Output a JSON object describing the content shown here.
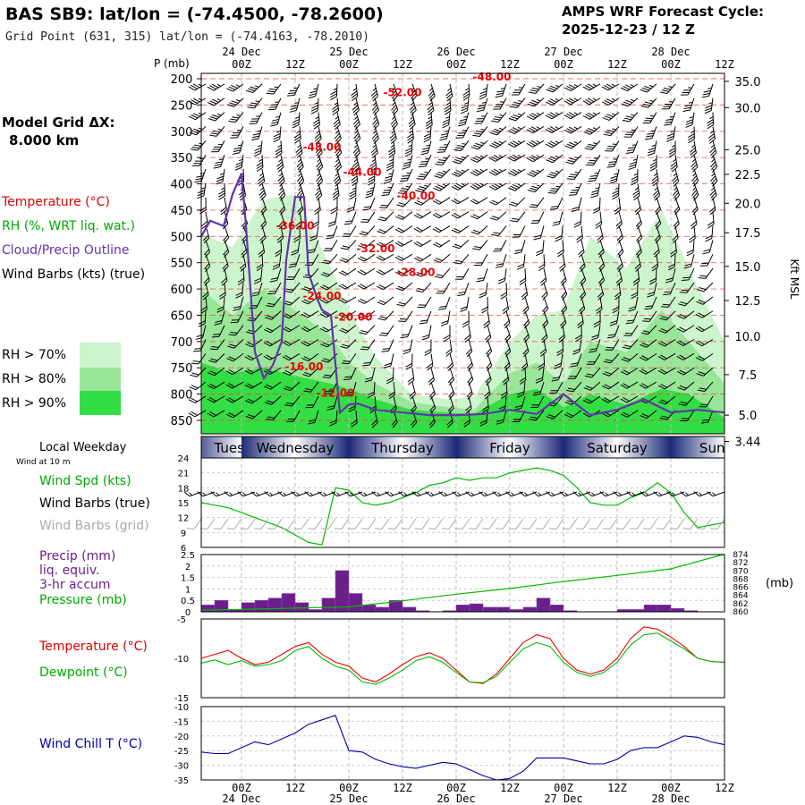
{
  "header": {
    "station_title": "BAS SB9:  lat/lon = (-74.4500, -78.2600)",
    "grid_point": "Grid Point (631, 315) lat/lon = (-74.4163, -78.2010)",
    "cycle_label": "AMPS WRF Forecast Cycle:",
    "cycle_value": "2025-12-23 / 12  Z"
  },
  "time_axis": {
    "hour_ticks": [
      "00Z",
      "12Z",
      "00Z",
      "12Z",
      "00Z",
      "12Z",
      "00Z",
      "12Z",
      "00Z",
      "12Z"
    ],
    "tick_times_h": [
      0,
      12,
      24,
      36,
      48,
      60,
      72,
      84,
      96,
      108
    ],
    "date_labels": [
      "24 Dec",
      "25 Dec",
      "26 Dec",
      "27 Dec",
      "28 Dec"
    ],
    "date_times_h": [
      0,
      24,
      48,
      72,
      96
    ],
    "range_h": [
      -9,
      108
    ]
  },
  "left_panel": {
    "model_grid_label": "Model Grid ΔX:",
    "model_grid_value": "8.000 km",
    "legend_temperature": "Temperature (°C)",
    "legend_rh": "RH (%, WRT liq. wat.)",
    "legend_cloud": "Cloud/Precip Outline",
    "legend_wind": "Wind Barbs (kts) (true)",
    "rh_levels": [
      {
        "label": "RH > 70%",
        "color": "#cdf5cd"
      },
      {
        "label": "RH > 80%",
        "color": "#99e699"
      },
      {
        "label": "RH > 90%",
        "color": "#33dd44"
      }
    ],
    "local_weekday_label": "Local Weekday",
    "wind_at_label": "Wind at 10 m",
    "wind_spd_label": "Wind Spd (kts)",
    "wind_barbs_true_label": "Wind Barbs (true)",
    "wind_barbs_grid_label": "Wind Barbs (grid)",
    "precip_label_1": "Precip (mm)",
    "precip_label_2": "liq. equiv.",
    "precip_label_3": "3-hr accum",
    "pressure_label": "Pressure (mb)",
    "pressure_unit": "(mb)",
    "temperature_label": "Temperature (°C)",
    "dewpoint_label": "Dewpoint (°C)",
    "windchill_label": "Wind Chill T (°C)"
  },
  "weekday_band": {
    "days": [
      {
        "label": "Tuesday",
        "start_h": -12
      },
      {
        "label": "Wednesday",
        "start_h": 0
      },
      {
        "label": "Thursday",
        "start_h": 24
      },
      {
        "label": "Friday",
        "start_h": 48
      },
      {
        "label": "Saturday",
        "start_h": 72
      },
      {
        "label": "Sunday",
        "start_h": 96
      }
    ],
    "dark_color": "#1c2a78",
    "light_color": "#ffffff"
  },
  "colors": {
    "temperature": "#ee0000",
    "dewpoint": "#00bb00",
    "cloud_outline": "#6633aa",
    "precip_bar": "#6a1f8a",
    "pressure_line": "#00bb00",
    "windchill": "#0000aa",
    "grid_barbs": "#aaaaaa",
    "barbs": "#000000"
  },
  "chart_data": [
    {
      "type": "heatmap",
      "yaxis_title": "P (mb)",
      "right_axis_title": "Kft MSL",
      "pressure_levels_mb": [
        200,
        250,
        300,
        350,
        400,
        450,
        500,
        550,
        600,
        650,
        700,
        750,
        800,
        850
      ],
      "height_ticks_kft": [
        {
          "kft": "35.0",
          "p": 205
        },
        {
          "kft": "30.0",
          "p": 255
        },
        {
          "kft": "25.0",
          "p": 335
        },
        {
          "kft": "22.5",
          "p": 382
        },
        {
          "kft": "20.0",
          "p": 437
        },
        {
          "kft": "17.5",
          "p": 493
        },
        {
          "kft": "15.0",
          "p": 557
        },
        {
          "kft": "12.5",
          "p": 622
        },
        {
          "kft": "10.0",
          "p": 690
        },
        {
          "kft": "7.5",
          "p": 763
        },
        {
          "kft": "5.0",
          "p": 840
        },
        {
          "kft": "3.44",
          "p": 890
        }
      ],
      "temperature_contour_labels": [
        {
          "text": "-48.00",
          "t_h": 56,
          "p": 203
        },
        {
          "text": "-52.00",
          "t_h": 36,
          "p": 233
        },
        {
          "text": "-48.00",
          "t_h": 18,
          "p": 337
        },
        {
          "text": "-44.00",
          "t_h": 27,
          "p": 385
        },
        {
          "text": "-40.00",
          "t_h": 39,
          "p": 430
        },
        {
          "text": "-36.00",
          "t_h": 12,
          "p": 487
        },
        {
          "text": "-32.00",
          "t_h": 30,
          "p": 530
        },
        {
          "text": "-28.00",
          "t_h": 39,
          "p": 575
        },
        {
          "text": "-24.00",
          "t_h": 18,
          "p": 620
        },
        {
          "text": "-20.00",
          "t_h": 25,
          "p": 660
        },
        {
          "text": "-16.00",
          "t_h": 14,
          "p": 755
        },
        {
          "text": "-12.00",
          "t_h": 21,
          "p": 805
        }
      ],
      "rh_regions": [
        {
          "level": ">70%",
          "color": "#cdf5cd",
          "t_h": [
            -9,
            -2,
            5,
            12,
            20,
            24,
            30,
            38,
            46,
            52,
            60,
            66,
            72,
            78,
            86,
            94,
            100,
            108
          ],
          "p_top": [
            495,
            520,
            430,
            420,
            560,
            640,
            730,
            800,
            810,
            805,
            700,
            650,
            640,
            500,
            560,
            450,
            560,
            700
          ]
        },
        {
          "level": ">80%",
          "color": "#99e699",
          "t_h": [
            -9,
            -2,
            5,
            12,
            20,
            24,
            30,
            38,
            46,
            52,
            60,
            66,
            72,
            78,
            86,
            94,
            100,
            108
          ],
          "p_top": [
            600,
            650,
            600,
            640,
            690,
            740,
            780,
            815,
            825,
            830,
            760,
            740,
            780,
            700,
            720,
            640,
            700,
            780
          ]
        },
        {
          "level": ">90%",
          "color": "#33dd44",
          "t_h": [
            -9,
            -2,
            5,
            12,
            20,
            24,
            30,
            38,
            46,
            52,
            60,
            66,
            72,
            78,
            86,
            94,
            100,
            108
          ],
          "p_top": [
            740,
            760,
            750,
            765,
            780,
            790,
            810,
            830,
            835,
            838,
            800,
            790,
            825,
            800,
            820,
            790,
            800,
            845
          ]
        }
      ],
      "cloud_outline": {
        "t_h": [
          -9,
          -7,
          -4,
          -2,
          0,
          1,
          3,
          5,
          7,
          9,
          10,
          12,
          14,
          15,
          17,
          18,
          20,
          22,
          24,
          26,
          30,
          36,
          42,
          48,
          54,
          60,
          66,
          72,
          78,
          84,
          90,
          96,
          102,
          108
        ],
        "p": [
          500,
          470,
          480,
          420,
          380,
          480,
          720,
          770,
          745,
          700,
          545,
          425,
          425,
          570,
          620,
          640,
          650,
          835,
          820,
          818,
          830,
          835,
          840,
          840,
          838,
          830,
          838,
          800,
          840,
          830,
          810,
          835,
          830,
          835
        ]
      }
    },
    {
      "type": "line",
      "ylabel": "Wind Spd (kts)",
      "yticks": [
        6,
        9,
        12,
        15,
        18,
        21,
        24
      ],
      "ylim": [
        6,
        24
      ],
      "x_h": [
        -9,
        -6,
        -3,
        0,
        3,
        6,
        9,
        12,
        15,
        18,
        21,
        24,
        27,
        30,
        33,
        36,
        39,
        42,
        45,
        48,
        51,
        54,
        57,
        60,
        63,
        66,
        69,
        72,
        75,
        78,
        81,
        84,
        87,
        90,
        93,
        96,
        99,
        102,
        105,
        108
      ],
      "values": [
        15,
        14.5,
        14,
        13,
        12,
        11,
        10,
        8.5,
        7,
        6.5,
        18,
        17.5,
        15,
        14.5,
        15,
        16,
        17,
        18.5,
        19,
        20,
        19.5,
        20,
        20,
        21,
        21.5,
        22,
        21.5,
        20.5,
        18,
        15,
        14.5,
        14.5,
        16,
        17,
        19,
        17,
        13,
        10,
        10.5,
        11
      ]
    },
    {
      "type": "bar",
      "ylabel": "Precip (mm)",
      "yticks": [
        0,
        0.5,
        1.0,
        1.5,
        2.0,
        2.5
      ],
      "ylim": [
        0,
        2.5
      ],
      "x_h": [
        -9,
        -6,
        -3,
        0,
        3,
        6,
        9,
        12,
        15,
        18,
        21,
        24,
        27,
        30,
        33,
        36,
        39,
        42,
        45,
        48,
        51,
        54,
        57,
        60,
        63,
        66,
        69,
        72,
        75,
        78,
        81,
        84,
        87,
        90,
        93,
        96,
        99,
        102,
        105
      ],
      "values": [
        0.3,
        0.5,
        0.1,
        0.4,
        0.5,
        0.6,
        0.8,
        0.4,
        0.1,
        0.6,
        1.8,
        0.8,
        0.3,
        0.2,
        0.5,
        0.2,
        0.05,
        0,
        0.05,
        0.3,
        0.35,
        0.2,
        0.2,
        0.1,
        0.2,
        0.6,
        0.3,
        0.05,
        0,
        0,
        0,
        0.1,
        0.1,
        0.3,
        0.3,
        0.15,
        0.05,
        0,
        0
      ]
    },
    {
      "type": "line",
      "ylabel": "Pressure (mb)",
      "yticks": [
        860,
        862,
        864,
        866,
        868,
        870,
        872,
        874
      ],
      "ylim": [
        860,
        874
      ],
      "x_h": [
        -9,
        0,
        12,
        24,
        36,
        48,
        60,
        72,
        84,
        96,
        108
      ],
      "values": [
        860.4,
        860.6,
        860.9,
        861.2,
        862.7,
        864.3,
        865.7,
        867.4,
        868.9,
        870.5,
        874.1
      ]
    },
    {
      "type": "line",
      "ylabel": "Temperature / Dewpoint (°C)",
      "yticks": [
        -15,
        -10,
        -5
      ],
      "ylim": [
        -15,
        -5
      ],
      "x_h": [
        -9,
        -6,
        -3,
        0,
        3,
        6,
        9,
        12,
        15,
        18,
        21,
        24,
        27,
        30,
        33,
        36,
        39,
        42,
        45,
        48,
        51,
        54,
        57,
        60,
        63,
        66,
        69,
        72,
        75,
        78,
        81,
        84,
        87,
        90,
        93,
        96,
        99,
        102,
        105,
        108
      ],
      "series": [
        {
          "name": "Temperature (°C)",
          "values": [
            -10.0,
            -9.5,
            -9.0,
            -10.0,
            -10.8,
            -10.5,
            -9.5,
            -8.5,
            -8.0,
            -9.5,
            -10.5,
            -11.0,
            -12.5,
            -13.0,
            -12.0,
            -10.8,
            -9.8,
            -9.3,
            -10.0,
            -11.5,
            -13.0,
            -13.2,
            -12.0,
            -10.0,
            -8.0,
            -7.0,
            -7.5,
            -10.0,
            -11.5,
            -12.0,
            -11.5,
            -10.0,
            -7.5,
            -6.0,
            -6.3,
            -7.3,
            -8.5,
            -10.0,
            -10.4,
            -10.5
          ]
        },
        {
          "name": "Dewpoint (°C)",
          "values": [
            -10.6,
            -10.2,
            -10.8,
            -10.3,
            -11.0,
            -10.8,
            -10.3,
            -9.0,
            -8.5,
            -10.0,
            -11.0,
            -11.5,
            -13.0,
            -13.3,
            -12.5,
            -11.5,
            -10.3,
            -9.8,
            -10.5,
            -11.8,
            -13.0,
            -13.1,
            -12.3,
            -10.5,
            -8.8,
            -8.0,
            -8.5,
            -10.5,
            -11.8,
            -12.3,
            -11.8,
            -10.5,
            -8.3,
            -7.0,
            -6.8,
            -7.8,
            -8.8,
            -10.0,
            -10.4,
            -10.5
          ]
        }
      ]
    },
    {
      "type": "line",
      "ylabel": "Wind Chill T (°C)",
      "yticks": [
        -35,
        -30,
        -25,
        -20,
        -15,
        -10
      ],
      "ylim": [
        -35,
        -10
      ],
      "x_h": [
        -9,
        -6,
        -3,
        0,
        3,
        6,
        9,
        12,
        15,
        18,
        21,
        24,
        27,
        30,
        33,
        36,
        39,
        42,
        45,
        48,
        51,
        54,
        57,
        60,
        63,
        66,
        69,
        72,
        75,
        78,
        81,
        84,
        87,
        90,
        93,
        96,
        99,
        102,
        105,
        108
      ],
      "values": [
        -25.5,
        -26.0,
        -26.0,
        -24.0,
        -22.0,
        -23.0,
        -21.0,
        -19.0,
        -16.0,
        -14.5,
        -13.0,
        -25.0,
        -25.5,
        -28.0,
        -29.5,
        -30.5,
        -31.0,
        -30.0,
        -29.0,
        -29.5,
        -31.5,
        -33.5,
        -35.0,
        -34.5,
        -32.0,
        -27.5,
        -27.5,
        -27.5,
        -28.5,
        -29.5,
        -29.5,
        -28.0,
        -25.0,
        -24.0,
        -24.0,
        -22.0,
        -20.0,
        -20.5,
        -22.0,
        -23.0
      ]
    }
  ]
}
